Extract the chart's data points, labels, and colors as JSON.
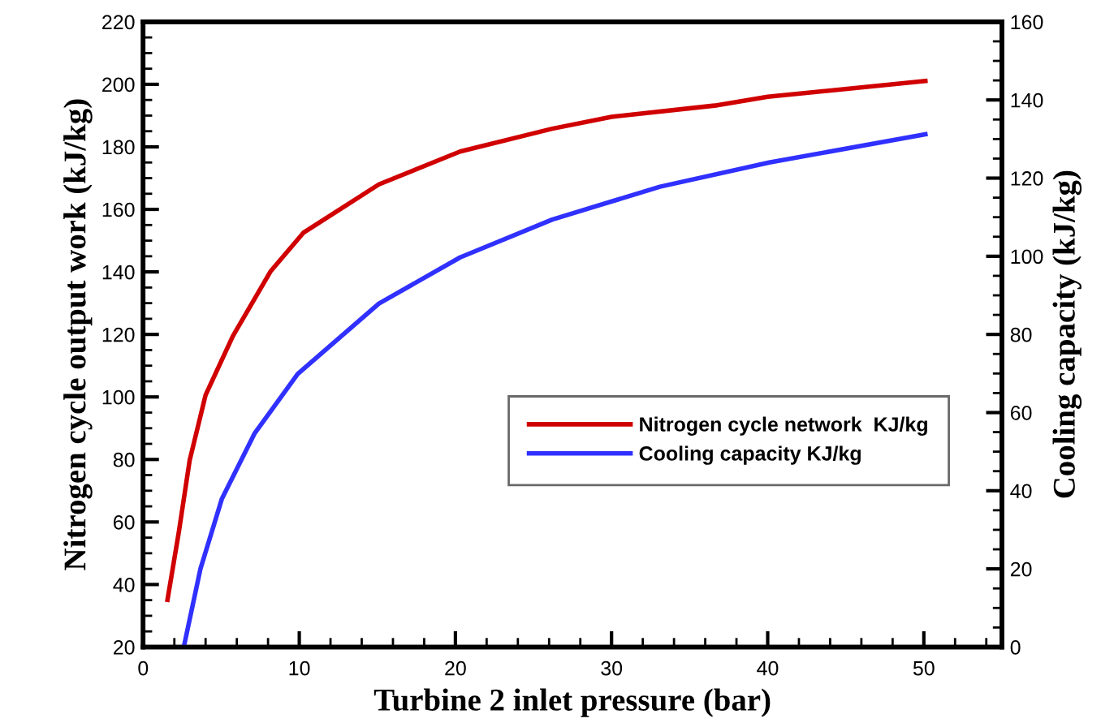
{
  "chart_data": {
    "type": "line",
    "xlabel": "Turbine 2 inlet pressure (bar)",
    "ylabel": "Nitrogen cycle output work (kJ/kg)",
    "y2label": "Cooling capacity (kJ/kg)",
    "series": [
      {
        "name": "Nitrogen cycle network  KJ/kg",
        "color": "#d00000",
        "x": [
          1.56,
          2.29,
          2.98,
          4.0,
          5.75,
          8.18,
          10.26,
          15.1,
          20.3,
          26.2,
          30,
          36.6,
          40,
          50.1
        ],
        "values": [
          35.1,
          56.9,
          79.7,
          100.6,
          119.5,
          140.3,
          152.5,
          168,
          178.5,
          185.8,
          189.6,
          193.2,
          196,
          201.1
        ]
      },
      {
        "name": "Cooling capacity KJ/kg",
        "color": "#3030ff",
        "axis": "y2",
        "x": [
          2.63,
          3.67,
          5.05,
          7.13,
          9.9,
          15.1,
          20.3,
          26.2,
          33.1,
          40.1,
          50.1
        ],
        "values": [
          0.5,
          20,
          38,
          54.6,
          69.9,
          87.9,
          99.7,
          109.4,
          117.8,
          124,
          131.2
        ]
      }
    ],
    "xlim": [
      0,
      55
    ],
    "xticks": [
      0,
      10,
      20,
      30,
      40,
      50
    ],
    "ylim": [
      20,
      220
    ],
    "yticks": [
      20,
      40,
      60,
      80,
      100,
      120,
      140,
      160,
      180,
      200,
      220
    ],
    "y2lim": [
      0,
      160
    ],
    "y2ticks": [
      0,
      20,
      40,
      60,
      80,
      100,
      120,
      140,
      160
    ],
    "legend": "center right",
    "grid": false,
    "marker": "none",
    "line_style": "solid"
  }
}
